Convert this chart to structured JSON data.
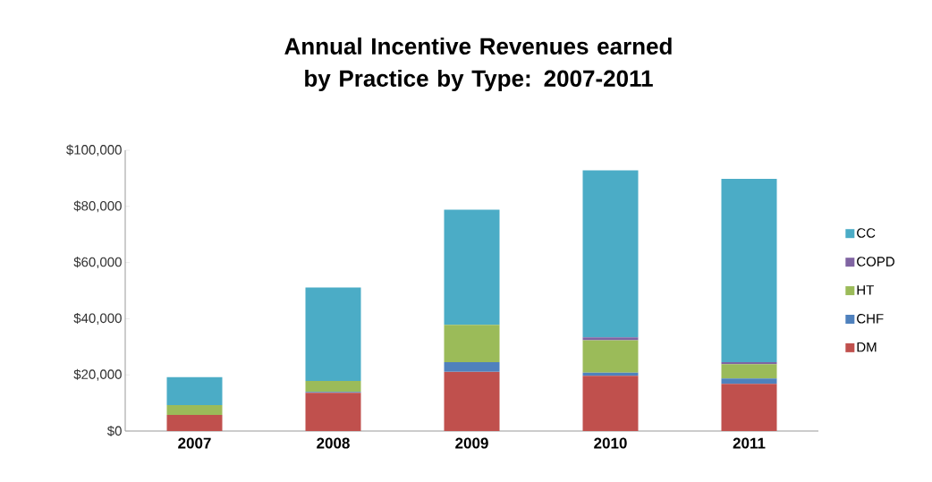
{
  "chart_data": {
    "type": "bar",
    "stacked": true,
    "title": "Annual Incentive Revenues earned by Practice by Type: 2007-2011",
    "categories": [
      "2007",
      "2008",
      "2009",
      "2010",
      "2011"
    ],
    "series": [
      {
        "name": "DM",
        "color": "#c0504d",
        "values": [
          5700,
          13600,
          21100,
          19700,
          16800
        ]
      },
      {
        "name": "CHF",
        "color": "#4f81bd",
        "values": [
          0,
          300,
          3400,
          1100,
          1900
        ]
      },
      {
        "name": "HT",
        "color": "#9bbb59",
        "values": [
          3500,
          3900,
          13300,
          11500,
          5100
        ]
      },
      {
        "name": "COPD",
        "color": "#8064a2",
        "values": [
          0,
          0,
          0,
          1100,
          700
        ]
      },
      {
        "name": "CC",
        "color": "#4bacc6",
        "values": [
          10000,
          33300,
          41000,
          59400,
          65300
        ]
      }
    ],
    "ylim": [
      0,
      100000
    ],
    "yticks": [
      {
        "value": 0,
        "label": "$0"
      },
      {
        "value": 20000,
        "label": "$20,000"
      },
      {
        "value": 40000,
        "label": "$40,000"
      },
      {
        "value": 60000,
        "label": "$60,000"
      },
      {
        "value": 80000,
        "label": "$80,000"
      },
      {
        "value": 100000,
        "label": "$100,000"
      }
    ],
    "legend": "right"
  }
}
